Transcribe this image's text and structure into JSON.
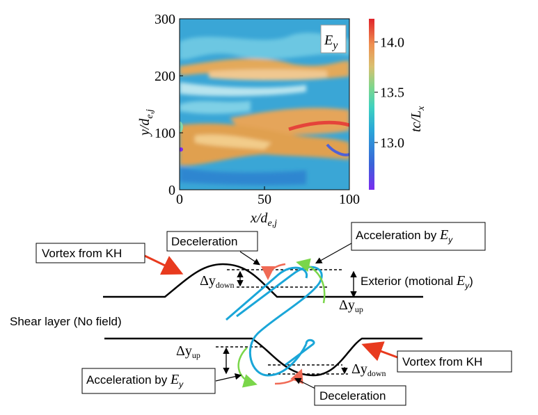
{
  "chart_data": {
    "type": "heatmap",
    "xlabel": [
      "x/d",
      "e,j"
    ],
    "ylabel": [
      "y/d",
      "e,j"
    ],
    "xlim": [
      0,
      100
    ],
    "xticks": [
      0,
      50,
      100
    ],
    "ylim": [
      0,
      300
    ],
    "yticks": [
      0,
      100,
      200,
      300
    ],
    "annotation": [
      "E",
      "y"
    ],
    "colorbar": {
      "label": [
        "tc/L",
        "x"
      ],
      "lim": [
        12.53,
        14.23
      ],
      "ticks": [
        {
          "value": 13,
          "label": "13.0"
        },
        13.5,
        {
          "value": 14,
          "label": "14.0"
        }
      ]
    }
  },
  "diagram": {
    "vortex_top": "Vortex from KH",
    "deceleration_top": "Deceleration",
    "acceleration_top": [
      "Acceleration by ",
      "E",
      "y"
    ],
    "exterior": [
      "Exterior (motional ",
      "E",
      "y",
      ")"
    ],
    "shear_layer": "Shear layer (No field)",
    "dy_down_top": [
      "Δy",
      "down"
    ],
    "dy_up_top": [
      "Δy",
      "up"
    ],
    "dy_up_bottom": [
      "Δy",
      "up"
    ],
    "dy_down_bottom": [
      "Δy",
      "down"
    ],
    "vortex_bottom": "Vortex from KH",
    "acceleration_bottom": [
      "Acceleration by ",
      "E",
      "y"
    ],
    "deceleration_bottom": "Deceleration"
  }
}
